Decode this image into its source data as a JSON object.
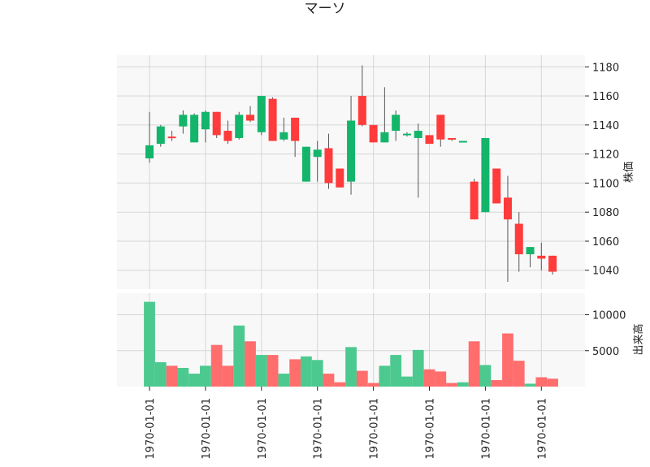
{
  "chart_data": {
    "type": "candlestick",
    "title": "マーソ",
    "price_ylabel": "株価",
    "volume_ylabel": "出来高",
    "x_tick_label": "1970-01-01",
    "x_tick_count": 8,
    "price_ylim": [
      1027,
      1188
    ],
    "price_yticks": [
      1040,
      1060,
      1080,
      1100,
      1120,
      1140,
      1160,
      1180
    ],
    "volume_ylim": [
      0,
      13000
    ],
    "volume_yticks": [
      5000,
      10000
    ],
    "grid": true,
    "colors": {
      "up": "#13b56b",
      "down": "#ff3b3b",
      "up_volume": "#4cc98f",
      "down_volume": "#ff6d6d",
      "panel_bg": "#f8f8f8",
      "grid": "#d6d6d6"
    },
    "candles": [
      {
        "open": 1117,
        "high": 1149,
        "low": 1114,
        "close": 1126,
        "volume": 11800
      },
      {
        "open": 1127,
        "high": 1140,
        "low": 1125,
        "close": 1139,
        "volume": 3400
      },
      {
        "open": 1132,
        "high": 1136,
        "low": 1129,
        "close": 1131,
        "volume": 2900
      },
      {
        "open": 1139,
        "high": 1150,
        "low": 1134,
        "close": 1147,
        "volume": 2600
      },
      {
        "open": 1128,
        "high": 1148,
        "low": 1128,
        "close": 1147,
        "volume": 1800
      },
      {
        "open": 1137,
        "high": 1150,
        "low": 1128,
        "close": 1149,
        "volume": 2900
      },
      {
        "open": 1149,
        "high": 1149,
        "low": 1131,
        "close": 1133,
        "volume": 5800
      },
      {
        "open": 1136,
        "high": 1143,
        "low": 1127,
        "close": 1129,
        "volume": 2900
      },
      {
        "open": 1131,
        "high": 1149,
        "low": 1130,
        "close": 1147,
        "volume": 8500
      },
      {
        "open": 1147,
        "high": 1153,
        "low": 1142,
        "close": 1143,
        "volume": 6300
      },
      {
        "open": 1135,
        "high": 1160,
        "low": 1133,
        "close": 1160,
        "volume": 4400
      },
      {
        "open": 1158,
        "high": 1159,
        "low": 1129,
        "close": 1129,
        "volume": 4400
      },
      {
        "open": 1130,
        "high": 1145,
        "low": 1129,
        "close": 1135,
        "volume": 1800
      },
      {
        "open": 1145,
        "high": 1145,
        "low": 1118,
        "close": 1129,
        "volume": 3800
      },
      {
        "open": 1101,
        "high": 1125,
        "low": 1101,
        "close": 1125,
        "volume": 4200
      },
      {
        "open": 1118,
        "high": 1129,
        "low": 1101,
        "close": 1123,
        "volume": 3700
      },
      {
        "open": 1124,
        "high": 1134,
        "low": 1096,
        "close": 1100,
        "volume": 1800
      },
      {
        "open": 1110,
        "high": 1110,
        "low": 1097,
        "close": 1097,
        "volume": 600
      },
      {
        "open": 1101,
        "high": 1160,
        "low": 1092,
        "close": 1143,
        "volume": 5500
      },
      {
        "open": 1160,
        "high": 1181,
        "low": 1139,
        "close": 1140,
        "volume": 2200
      },
      {
        "open": 1140,
        "high": 1140,
        "low": 1128,
        "close": 1128,
        "volume": 500
      },
      {
        "open": 1128,
        "high": 1166,
        "low": 1128,
        "close": 1135,
        "volume": 2900
      },
      {
        "open": 1136,
        "high": 1150,
        "low": 1129,
        "close": 1147,
        "volume": 4400
      },
      {
        "open": 1133,
        "high": 1135,
        "low": 1132,
        "close": 1134,
        "volume": 1400
      },
      {
        "open": 1131,
        "high": 1141,
        "low": 1090,
        "close": 1136,
        "volume": 5100
      },
      {
        "open": 1133,
        "high": 1133,
        "low": 1127,
        "close": 1127,
        "volume": 2400
      },
      {
        "open": 1147,
        "high": 1147,
        "low": 1125,
        "close": 1130,
        "volume": 2100
      },
      {
        "open": 1131,
        "high": 1131,
        "low": 1129,
        "close": 1130,
        "volume": 500
      },
      {
        "open": 1129,
        "high": 1129,
        "low": 1128,
        "close": 1129,
        "volume": 600
      },
      {
        "open": 1101,
        "high": 1103,
        "low": 1075,
        "close": 1075,
        "volume": 6300
      },
      {
        "open": 1080,
        "high": 1131,
        "low": 1080,
        "close": 1131,
        "volume": 3000
      },
      {
        "open": 1110,
        "high": 1110,
        "low": 1086,
        "close": 1086,
        "volume": 900
      },
      {
        "open": 1090,
        "high": 1105,
        "low": 1032,
        "close": 1075,
        "volume": 7400
      },
      {
        "open": 1072,
        "high": 1080,
        "low": 1039,
        "close": 1051,
        "volume": 3600
      },
      {
        "open": 1051,
        "high": 1056,
        "low": 1042,
        "close": 1056,
        "volume": 400
      },
      {
        "open": 1050,
        "high": 1059,
        "low": 1040,
        "close": 1048,
        "volume": 1300
      },
      {
        "open": 1050,
        "high": 1050,
        "low": 1037,
        "close": 1039,
        "volume": 1100
      }
    ]
  }
}
